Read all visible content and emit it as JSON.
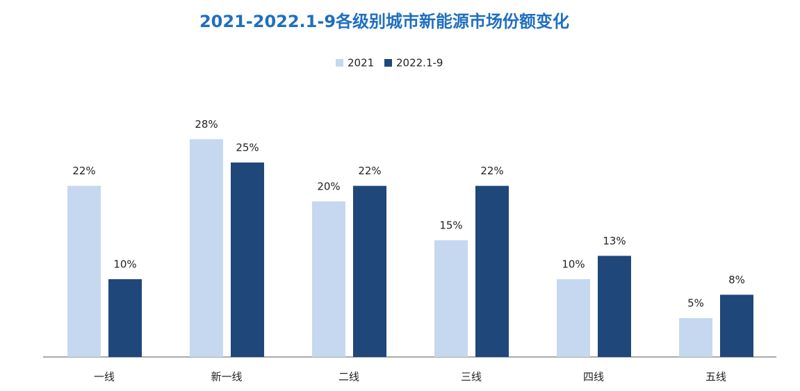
{
  "chart_data": {
    "type": "bar",
    "title": "2021-2022.1-9各级别城市新能源市场份额变化",
    "categories": [
      "一线",
      "新一线",
      "二线",
      "三线",
      "四线",
      "五线"
    ],
    "series": [
      {
        "name": "2021",
        "color": "#c6d8ef",
        "values": [
          22,
          28,
          20,
          15,
          10,
          5
        ],
        "value_labels": [
          "22%",
          "28%",
          "20%",
          "15%",
          "10%",
          "5%"
        ]
      },
      {
        "name": "2022.1-9",
        "color": "#1f477a",
        "values": [
          10,
          25,
          22,
          22,
          13,
          8
        ],
        "value_labels": [
          "10%",
          "25%",
          "22%",
          "22%",
          "13%",
          "8%"
        ]
      }
    ]
  }
}
